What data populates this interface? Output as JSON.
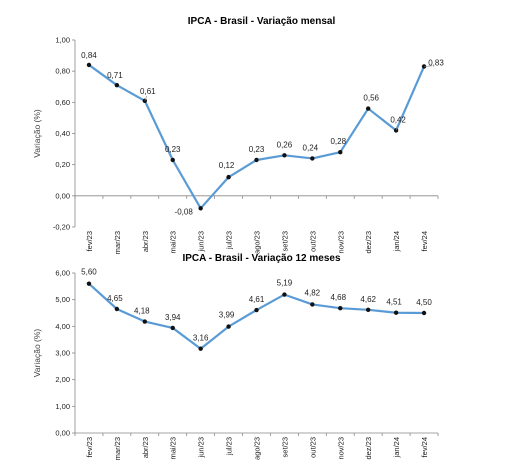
{
  "chart_data": [
    {
      "type": "line",
      "title": "IPCA - Brasil - Variação mensal",
      "xlabel": "",
      "ylabel": "Variação (%)",
      "ylim": [
        -0.2,
        1.0
      ],
      "yticks": [
        -0.2,
        0.0,
        0.2,
        0.4,
        0.6,
        0.8,
        1.0
      ],
      "ytick_labels": [
        "-0,20",
        "0,00",
        "0,20",
        "0,40",
        "0,60",
        "0,80",
        "1,00"
      ],
      "categories": [
        "fev/23",
        "mar/23",
        "abr/23",
        "mai/23",
        "jun/23",
        "jul/23",
        "ago/23",
        "set/23",
        "out/23",
        "nov/23",
        "dez/23",
        "jan/24",
        "fev/24"
      ],
      "values": [
        0.84,
        0.71,
        0.61,
        0.23,
        -0.08,
        0.12,
        0.23,
        0.26,
        0.24,
        0.28,
        0.56,
        0.42,
        0.83
      ],
      "value_labels": [
        "0,84",
        "0,71",
        "0,61",
        "0,23",
        "-0,08",
        "0,12",
        "0,23",
        "0,26",
        "0,24",
        "0,28",
        "0,56",
        "0,42",
        "0,83"
      ],
      "line_color": "#5b9bd5",
      "marker_color": "#111111",
      "grid": false
    },
    {
      "type": "line",
      "title": "IPCA - Brasil - Variação 12 meses",
      "xlabel": "",
      "ylabel": "Variação (%)",
      "ylim": [
        0.0,
        6.0
      ],
      "yticks": [
        0,
        1,
        2,
        3,
        4,
        5,
        6
      ],
      "ytick_labels": [
        "0,00",
        "1,00",
        "2,00",
        "3,00",
        "4,00",
        "5,00",
        "6,00"
      ],
      "categories": [
        "fev/23",
        "mar/23",
        "abr/23",
        "mai/23",
        "jun/23",
        "jul/23",
        "ago/23",
        "set/23",
        "out/23",
        "nov/23",
        "dez/23",
        "jan/24",
        "fev/24"
      ],
      "values": [
        5.6,
        4.65,
        4.18,
        3.94,
        3.16,
        3.99,
        4.61,
        5.19,
        4.82,
        4.68,
        4.62,
        4.51,
        4.5
      ],
      "value_labels": [
        "5,60",
        "4,65",
        "4,18",
        "3,94",
        "3,16",
        "3,99",
        "4,61",
        "5,19",
        "4,82",
        "4,68",
        "4,62",
        "4,51",
        "4,50"
      ],
      "line_color": "#5b9bd5",
      "marker_color": "#111111",
      "grid": false
    }
  ]
}
